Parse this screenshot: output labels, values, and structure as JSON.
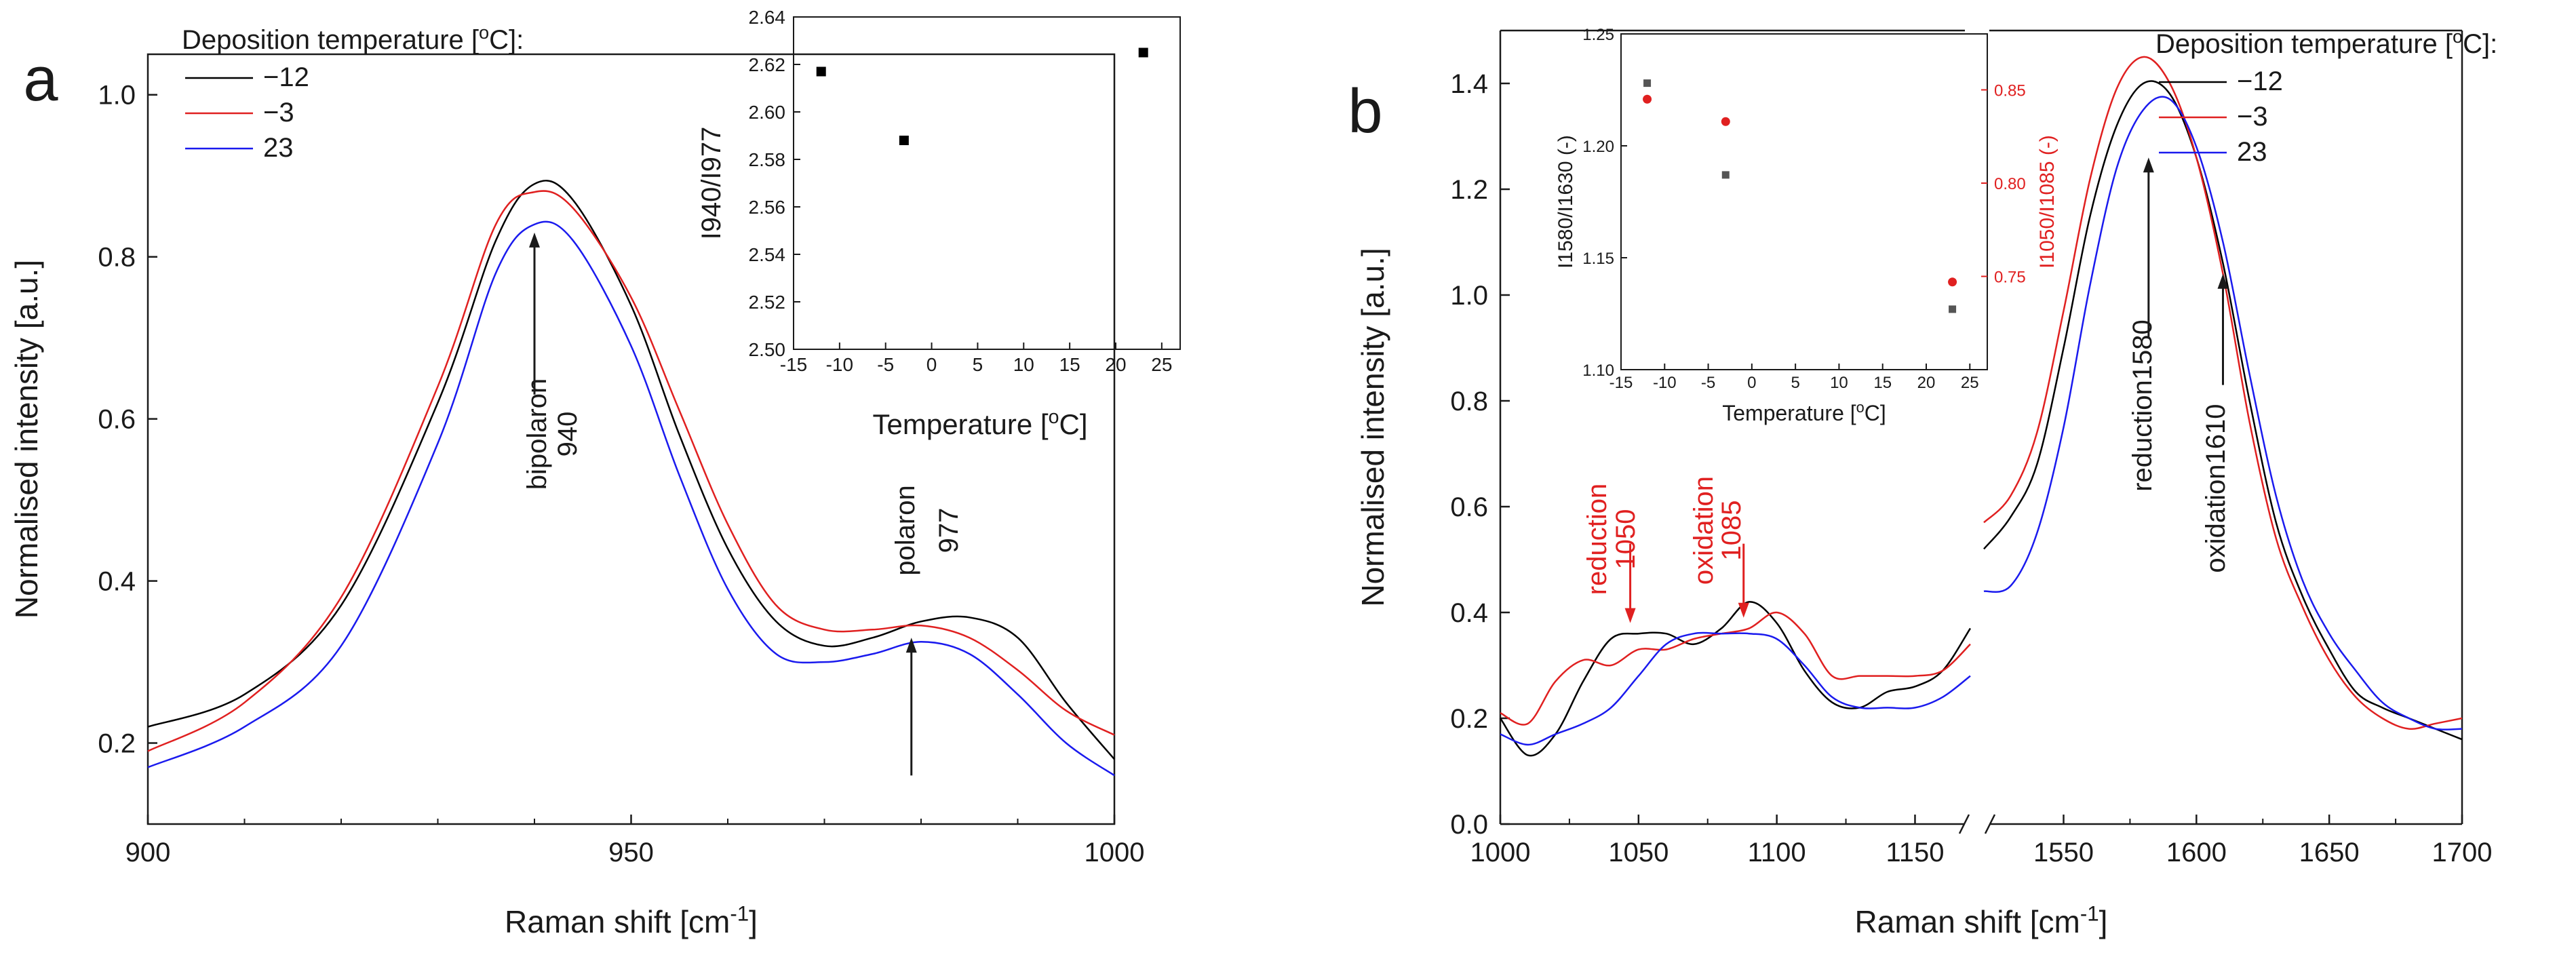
{
  "colors": {
    "axis": "#1a1a1a",
    "s_neg12": "#000000",
    "s_neg3": "#e02020",
    "s_23": "#1a1aee",
    "red_label": "#e02020"
  },
  "chart_data": [
    {
      "id": "a",
      "type": "line",
      "panel_label": "a",
      "xlabel": "Raman shift [cm-1]",
      "xlabel_main": "Raman shift [cm",
      "xlabel_sup": "-1",
      "xlabel_end": "]",
      "ylabel": "Normalised intensity [a.u.]",
      "xlim": [
        900,
        1000
      ],
      "ylim": [
        0.1,
        1.05
      ],
      "xticks": [
        {
          "v": 900,
          "label": "900"
        },
        {
          "v": 950,
          "label": "950"
        },
        {
          "v": 1000,
          "label": "1000"
        }
      ],
      "yticks": [
        {
          "v": 0.2,
          "label": "0.2"
        },
        {
          "v": 0.4,
          "label": "0.4"
        },
        {
          "v": 0.6,
          "label": "0.6"
        },
        {
          "v": 0.8,
          "label": "0.8"
        },
        {
          "v": 1.0,
          "label": "1.0"
        }
      ],
      "legend": {
        "title_main": "Deposition temperature [",
        "title_sup": "o",
        "title_end": "C]:",
        "entries": [
          "−12",
          "−3",
          "23"
        ]
      },
      "series": [
        {
          "name": "−12",
          "color": "#000000",
          "x": [
            900,
            910,
            920,
            930,
            936,
            940,
            944,
            950,
            955,
            960,
            965,
            970,
            975,
            980,
            985,
            990,
            995,
            1000
          ],
          "y": [
            0.22,
            0.26,
            0.37,
            0.62,
            0.82,
            0.89,
            0.87,
            0.74,
            0.58,
            0.44,
            0.35,
            0.32,
            0.33,
            0.35,
            0.355,
            0.33,
            0.25,
            0.18
          ]
        },
        {
          "name": "−3",
          "color": "#e02020",
          "x": [
            900,
            910,
            920,
            930,
            936,
            940,
            944,
            950,
            955,
            960,
            965,
            970,
            975,
            980,
            985,
            990,
            995,
            1000
          ],
          "y": [
            0.19,
            0.25,
            0.38,
            0.64,
            0.84,
            0.88,
            0.86,
            0.75,
            0.61,
            0.47,
            0.37,
            0.34,
            0.34,
            0.345,
            0.33,
            0.29,
            0.24,
            0.21
          ]
        },
        {
          "name": "23",
          "color": "#1a1aee",
          "x": [
            900,
            910,
            920,
            930,
            936,
            940,
            944,
            950,
            955,
            960,
            965,
            970,
            975,
            980,
            985,
            990,
            995,
            1000
          ],
          "y": [
            0.17,
            0.22,
            0.32,
            0.57,
            0.78,
            0.84,
            0.82,
            0.69,
            0.53,
            0.39,
            0.31,
            0.3,
            0.31,
            0.325,
            0.31,
            0.26,
            0.2,
            0.16
          ]
        }
      ],
      "annotations": [
        {
          "lines": [
            "bipolaron",
            "940"
          ],
          "x": 940,
          "arrow_from": 0.63,
          "arrow_to": 0.83
        },
        {
          "lines": [
            "polaron",
            "977"
          ],
          "x": 979,
          "arrow_from": 0.16,
          "arrow_to": 0.33
        }
      ],
      "inset": {
        "xlabel_main": "Temperature [",
        "xlabel_sup": "o",
        "xlabel_end": "C]",
        "ylabel": "I940/I977",
        "xlim": [
          -15,
          27
        ],
        "ylim": [
          2.5,
          2.64
        ],
        "xticks": [
          {
            "v": -15,
            "label": "-15"
          },
          {
            "v": -10,
            "label": "-10"
          },
          {
            "v": -5,
            "label": "-5"
          },
          {
            "v": 0,
            "label": "0"
          },
          {
            "v": 5,
            "label": "5"
          },
          {
            "v": 10,
            "label": "10"
          },
          {
            "v": 15,
            "label": "15"
          },
          {
            "v": 20,
            "label": "20"
          },
          {
            "v": 25,
            "label": "25"
          }
        ],
        "yticks": [
          {
            "v": 2.5,
            "label": "2.50"
          },
          {
            "v": 2.52,
            "label": "2.52"
          },
          {
            "v": 2.54,
            "label": "2.54"
          },
          {
            "v": 2.56,
            "label": "2.56"
          },
          {
            "v": 2.58,
            "label": "2.58"
          },
          {
            "v": 2.6,
            "label": "2.60"
          },
          {
            "v": 2.62,
            "label": "2.62"
          },
          {
            "v": 2.64,
            "label": "2.64"
          }
        ],
        "points": [
          {
            "x": -12,
            "y": 2.617
          },
          {
            "x": -3,
            "y": 2.588
          },
          {
            "x": 23,
            "y": 2.625
          }
        ]
      }
    },
    {
      "id": "b",
      "type": "line",
      "panel_label": "b",
      "xlabel": "Raman shift [cm-1]",
      "xlabel_main": "Raman shift [cm",
      "xlabel_sup": "-1",
      "xlabel_end": "]",
      "ylabel": "Normalised intensity [a.u.]",
      "xlim_left": [
        1000,
        1170
      ],
      "xlim_right": [
        1520,
        1700
      ],
      "ylim": [
        0.0,
        1.5
      ],
      "xticks_left": [
        {
          "v": 1000,
          "label": "1000"
        },
        {
          "v": 1050,
          "label": "1050"
        },
        {
          "v": 1100,
          "label": "1100"
        },
        {
          "v": 1150,
          "label": "1150"
        }
      ],
      "xticks_right": [
        {
          "v": 1550,
          "label": "1550"
        },
        {
          "v": 1600,
          "label": "1600"
        },
        {
          "v": 1650,
          "label": "1650"
        },
        {
          "v": 1700,
          "label": "1700"
        }
      ],
      "yticks": [
        {
          "v": 0.0,
          "label": "0.0"
        },
        {
          "v": 0.2,
          "label": "0.2"
        },
        {
          "v": 0.4,
          "label": "0.4"
        },
        {
          "v": 0.6,
          "label": "0.6"
        },
        {
          "v": 0.8,
          "label": "0.8"
        },
        {
          "v": 1.0,
          "label": "1.0"
        },
        {
          "v": 1.2,
          "label": "1.2"
        },
        {
          "v": 1.4,
          "label": "1.4"
        }
      ],
      "legend": {
        "title_main": "Deposition temperature [",
        "title_sup": "o",
        "title_end": "C]:",
        "entries": [
          "−12",
          "−3",
          "23"
        ]
      },
      "series": [
        {
          "name": "−12",
          "color": "#000000",
          "x_left": [
            1000,
            1010,
            1020,
            1030,
            1040,
            1050,
            1060,
            1070,
            1080,
            1090,
            1100,
            1110,
            1120,
            1130,
            1140,
            1150,
            1160,
            1170
          ],
          "y_left": [
            0.2,
            0.13,
            0.17,
            0.27,
            0.35,
            0.36,
            0.36,
            0.34,
            0.37,
            0.42,
            0.38,
            0.29,
            0.23,
            0.22,
            0.25,
            0.26,
            0.29,
            0.37
          ],
          "x_right": [
            1520,
            1530,
            1540,
            1550,
            1560,
            1570,
            1580,
            1590,
            1600,
            1610,
            1620,
            1630,
            1640,
            1650,
            1660,
            1670,
            1680,
            1690,
            1700
          ],
          "y_right": [
            0.52,
            0.58,
            0.68,
            0.9,
            1.15,
            1.32,
            1.4,
            1.38,
            1.26,
            1.06,
            0.8,
            0.57,
            0.43,
            0.33,
            0.25,
            0.22,
            0.2,
            0.18,
            0.16
          ]
        },
        {
          "name": "−3",
          "color": "#e02020",
          "x_left": [
            1000,
            1010,
            1020,
            1030,
            1040,
            1050,
            1060,
            1070,
            1080,
            1090,
            1100,
            1110,
            1120,
            1130,
            1140,
            1150,
            1160,
            1170
          ],
          "y_left": [
            0.21,
            0.19,
            0.27,
            0.31,
            0.3,
            0.33,
            0.33,
            0.35,
            0.36,
            0.37,
            0.4,
            0.36,
            0.28,
            0.28,
            0.28,
            0.28,
            0.29,
            0.34
          ],
          "x_right": [
            1520,
            1530,
            1540,
            1550,
            1560,
            1570,
            1580,
            1590,
            1600,
            1610,
            1620,
            1630,
            1640,
            1650,
            1660,
            1670,
            1680,
            1690,
            1700
          ],
          "y_right": [
            0.57,
            0.62,
            0.74,
            0.97,
            1.22,
            1.39,
            1.45,
            1.4,
            1.26,
            1.04,
            0.76,
            0.54,
            0.41,
            0.31,
            0.24,
            0.2,
            0.18,
            0.19,
            0.2
          ]
        },
        {
          "name": "23",
          "color": "#1a1aee",
          "x_left": [
            1000,
            1010,
            1020,
            1030,
            1040,
            1050,
            1060,
            1070,
            1080,
            1090,
            1100,
            1110,
            1120,
            1130,
            1140,
            1150,
            1160,
            1170
          ],
          "y_left": [
            0.17,
            0.15,
            0.17,
            0.19,
            0.22,
            0.28,
            0.34,
            0.36,
            0.36,
            0.36,
            0.35,
            0.3,
            0.24,
            0.22,
            0.22,
            0.22,
            0.24,
            0.28
          ],
          "x_right": [
            1520,
            1530,
            1540,
            1550,
            1560,
            1570,
            1580,
            1590,
            1600,
            1610,
            1620,
            1630,
            1640,
            1650,
            1660,
            1670,
            1680,
            1690,
            1700
          ],
          "y_right": [
            0.44,
            0.45,
            0.55,
            0.75,
            1.02,
            1.24,
            1.35,
            1.37,
            1.28,
            1.1,
            0.85,
            0.62,
            0.46,
            0.36,
            0.29,
            0.23,
            0.2,
            0.18,
            0.18
          ]
        }
      ],
      "annotations": [
        {
          "lines": [
            "reduction",
            "1050"
          ],
          "x": 1047,
          "arrow_from": 0.53,
          "arrow_to": 0.38,
          "color": "red",
          "side": "left"
        },
        {
          "lines": [
            "oxidation",
            "1085"
          ],
          "x": 1088,
          "arrow_from": 0.53,
          "arrow_to": 0.39,
          "color": "red",
          "side": "left"
        },
        {
          "lines": [
            "reduction1580"
          ],
          "x": 1582,
          "arrow_from": 0.92,
          "arrow_to": 1.26,
          "color": "black",
          "side": "right"
        },
        {
          "lines": [
            "oxidation1610"
          ],
          "x": 1610,
          "arrow_from": 0.83,
          "arrow_to": 1.04,
          "color": "black",
          "side": "right"
        }
      ],
      "inset": {
        "xlabel_main": "Temperature [",
        "xlabel_sup": "o",
        "xlabel_end": "C]",
        "ylabel_left": "I1580/I1630 (-)",
        "ylabel_right": "I1050/I1085 (-)",
        "xlim": [
          -15,
          27
        ],
        "ylim_left": [
          1.1,
          1.25
        ],
        "ylim_right": [
          0.7,
          0.88
        ],
        "xticks": [
          {
            "v": -15,
            "label": "-15"
          },
          {
            "v": -10,
            "label": "-10"
          },
          {
            "v": -5,
            "label": "-5"
          },
          {
            "v": 0,
            "label": "0"
          },
          {
            "v": 5,
            "label": "5"
          },
          {
            "v": 10,
            "label": "10"
          },
          {
            "v": 15,
            "label": "15"
          },
          {
            "v": 20,
            "label": "20"
          },
          {
            "v": 25,
            "label": "25"
          }
        ],
        "yticks_left": [
          {
            "v": 1.1,
            "label": "1.10"
          },
          {
            "v": 1.15,
            "label": "1.15"
          },
          {
            "v": 1.2,
            "label": "1.20"
          },
          {
            "v": 1.25,
            "label": "1.25"
          }
        ],
        "yticks_right": [
          {
            "v": 0.75,
            "label": "0.75"
          },
          {
            "v": 0.8,
            "label": "0.80"
          },
          {
            "v": 0.85,
            "label": "0.85"
          }
        ],
        "points_left": [
          {
            "x": -12,
            "y": 1.228
          },
          {
            "x": -3,
            "y": 1.187
          },
          {
            "x": 23,
            "y": 1.127
          }
        ],
        "points_right": [
          {
            "x": -12,
            "y": 0.845
          },
          {
            "x": -3,
            "y": 0.833
          },
          {
            "x": 23,
            "y": 0.747
          }
        ]
      }
    }
  ]
}
